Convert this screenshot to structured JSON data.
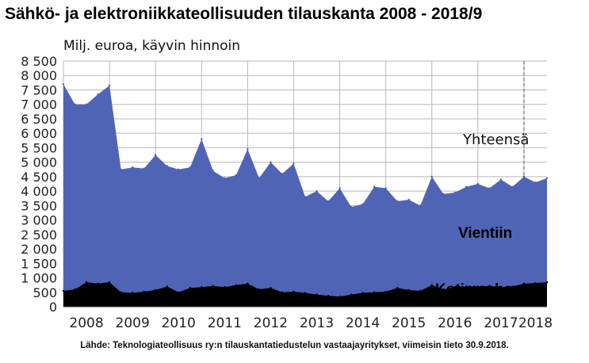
{
  "title": "Sähkö- ja elektroniikkateollisuuden tilauskanta 2008 - 2018/9",
  "subtitle": "Milj. euroa, käyvin hinnoin",
  "source": "Lähde: Teknologiateollisuus ry:n tilauskantatiedustelun vastaajayritykset, viimeisin tieto 30.9.2018.",
  "colors": {
    "vientiin": "#4a5fb4",
    "kotimaahan": "#000000",
    "grid": "#b8b8b8",
    "background": "#ffffff"
  },
  "chart_data": {
    "type": "area",
    "stacked": true,
    "x": [
      "2008/1",
      "2008/2",
      "2008/3",
      "2008/4",
      "2009/1",
      "2009/2",
      "2009/3",
      "2009/4",
      "2010/1",
      "2010/2",
      "2010/3",
      "2010/4",
      "2011/1",
      "2011/2",
      "2011/3",
      "2011/4",
      "2012/1",
      "2012/2",
      "2012/3",
      "2012/4",
      "2013/1",
      "2013/2",
      "2013/3",
      "2013/4",
      "2014/1",
      "2014/2",
      "2014/3",
      "2014/4",
      "2015/1",
      "2015/2",
      "2015/3",
      "2015/4",
      "2016/1",
      "2016/2",
      "2016/3",
      "2016/4",
      "2017/1",
      "2017/2",
      "2017/3",
      "2017/4",
      "2018/1",
      "2018/2",
      "2018/3"
    ],
    "xticks": [
      "2008",
      "2009",
      "2010",
      "2011",
      "2012",
      "2013",
      "2014",
      "2015",
      "2016",
      "2017",
      "2018"
    ],
    "yticks": [
      "0",
      "500",
      "1 000",
      "1 500",
      "2 000",
      "2 500",
      "3 000",
      "3 500",
      "4 000",
      "4 500",
      "5 000",
      "5 500",
      "6 000",
      "6 500",
      "7 000",
      "7 500",
      "8 000",
      "8 500"
    ],
    "ylim": [
      0,
      8500
    ],
    "grid": true,
    "series": [
      {
        "name": "Kotimaahan",
        "values": [
          550,
          600,
          850,
          800,
          850,
          500,
          480,
          520,
          580,
          700,
          500,
          650,
          680,
          720,
          680,
          750,
          800,
          600,
          650,
          500,
          520,
          480,
          420,
          380,
          350,
          420,
          480,
          500,
          520,
          650,
          580,
          550,
          750,
          600,
          680,
          700,
          700,
          720,
          680,
          700,
          800,
          820,
          850
        ]
      },
      {
        "name": "Yhteensä",
        "values": [
          7700,
          7000,
          7000,
          7350,
          7650,
          4750,
          4820,
          4780,
          5250,
          4870,
          4750,
          4820,
          5800,
          4700,
          4450,
          4550,
          5450,
          4450,
          5000,
          4600,
          4950,
          3800,
          4000,
          3650,
          4100,
          3450,
          3550,
          4150,
          4100,
          3650,
          3700,
          3500,
          4500,
          3900,
          3950,
          4150,
          4250,
          4100,
          4400,
          4150,
          4500,
          4300,
          4450
        ]
      }
    ],
    "annotations": {
      "yhteensa": "Yhteensä",
      "vientiin": "Vientiin",
      "kotimaahan": "Kotimaahan"
    }
  }
}
